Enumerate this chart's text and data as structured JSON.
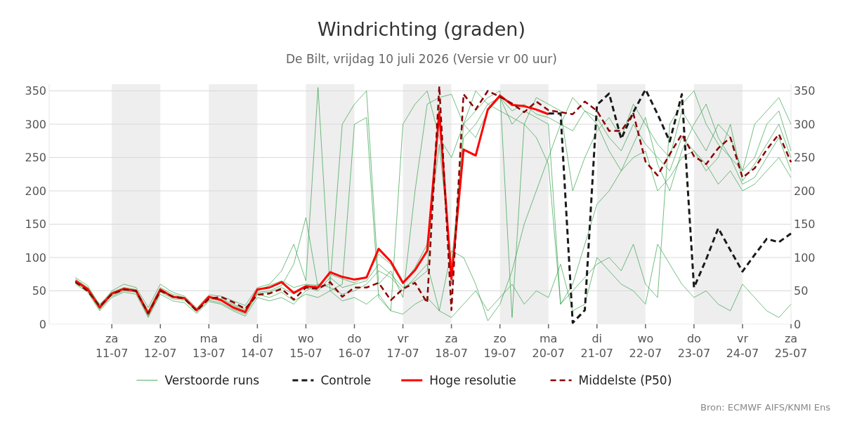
{
  "chart_data": {
    "type": "line",
    "title": "Windrichting (graden)",
    "subtitle": "De Bilt, vrijdag 10 juli 2026 (Versie vr 00 uur)",
    "annotations": [
      "Bron: ECMWF AIFS/KNMI Ens"
    ],
    "x": [
      "2026-07-10T06:00",
      "2026-07-10T12:00",
      "2026-07-10T18:00",
      "2026-07-11T00:00",
      "2026-07-11T06:00",
      "2026-07-11T12:00",
      "2026-07-11T18:00",
      "2026-07-12T00:00",
      "2026-07-12T06:00",
      "2026-07-12T12:00",
      "2026-07-12T18:00",
      "2026-07-13T00:00",
      "2026-07-13T06:00",
      "2026-07-13T12:00",
      "2026-07-13T18:00",
      "2026-07-14T00:00",
      "2026-07-14T06:00",
      "2026-07-14T12:00",
      "2026-07-14T18:00",
      "2026-07-15T00:00",
      "2026-07-15T06:00",
      "2026-07-15T12:00",
      "2026-07-15T18:00",
      "2026-07-16T00:00",
      "2026-07-16T06:00",
      "2026-07-16T12:00",
      "2026-07-16T18:00",
      "2026-07-17T00:00",
      "2026-07-17T06:00",
      "2026-07-17T12:00",
      "2026-07-17T18:00",
      "2026-07-18T00:00",
      "2026-07-18T06:00",
      "2026-07-18T12:00",
      "2026-07-18T18:00",
      "2026-07-19T00:00",
      "2026-07-19T06:00",
      "2026-07-19T12:00",
      "2026-07-19T18:00",
      "2026-07-20T00:00",
      "2026-07-20T06:00",
      "2026-07-20T12:00",
      "2026-07-20T18:00",
      "2026-07-21T00:00",
      "2026-07-21T06:00",
      "2026-07-21T12:00",
      "2026-07-21T18:00",
      "2026-07-22T00:00",
      "2026-07-22T06:00",
      "2026-07-22T12:00",
      "2026-07-22T18:00",
      "2026-07-23T00:00",
      "2026-07-23T06:00",
      "2026-07-23T12:00",
      "2026-07-23T18:00",
      "2026-07-24T00:00",
      "2026-07-24T06:00",
      "2026-07-24T12:00",
      "2026-07-24T18:00",
      "2026-07-25T00:00"
    ],
    "xlim": [
      "2026-07-09T17:00",
      "2026-07-25T00:00"
    ],
    "xticks": [
      {
        "value": "2026-07-11",
        "label": "za\n11-07"
      },
      {
        "value": "2026-07-12",
        "label": "zo\n12-07"
      },
      {
        "value": "2026-07-13",
        "label": "ma\n13-07"
      },
      {
        "value": "2026-07-14",
        "label": "di\n14-07"
      },
      {
        "value": "2026-07-15",
        "label": "wo\n15-07"
      },
      {
        "value": "2026-07-16",
        "label": "do\n16-07"
      },
      {
        "value": "2026-07-17",
        "label": "vr\n17-07"
      },
      {
        "value": "2026-07-18",
        "label": "za\n18-07"
      },
      {
        "value": "2026-07-19",
        "label": "zo\n19-07"
      },
      {
        "value": "2026-07-20",
        "label": "ma\n20-07"
      },
      {
        "value": "2026-07-21",
        "label": "di\n21-07"
      },
      {
        "value": "2026-07-22",
        "label": "wo\n22-07"
      },
      {
        "value": "2026-07-23",
        "label": "do\n23-07"
      },
      {
        "value": "2026-07-24",
        "label": "vr\n24-07"
      },
      {
        "value": "2026-07-25",
        "label": "za\n25-07"
      }
    ],
    "ylim": [
      0,
      360
    ],
    "yticks": [
      0,
      50,
      100,
      150,
      200,
      250,
      300,
      350
    ],
    "y2lim": [
      0,
      360
    ],
    "y2ticks": [
      0,
      50,
      100,
      150,
      200,
      250,
      300,
      350
    ],
    "grid": "y",
    "legend": "bottom",
    "bands": [
      {
        "axis": "x",
        "from": "2026-07-11",
        "to": "2026-07-12",
        "color": "#eeeeee"
      },
      {
        "axis": "x",
        "from": "2026-07-13",
        "to": "2026-07-14",
        "color": "#eeeeee"
      },
      {
        "axis": "x",
        "from": "2026-07-15",
        "to": "2026-07-16",
        "color": "#eeeeee"
      },
      {
        "axis": "x",
        "from": "2026-07-17",
        "to": "2026-07-18",
        "color": "#eeeeee"
      },
      {
        "axis": "x",
        "from": "2026-07-19",
        "to": "2026-07-20",
        "color": "#eeeeee"
      },
      {
        "axis": "x",
        "from": "2026-07-21",
        "to": "2026-07-22",
        "color": "#eeeeee"
      },
      {
        "axis": "x",
        "from": "2026-07-23",
        "to": "2026-07-24",
        "color": "#eeeeee"
      }
    ],
    "series": [
      {
        "name": "Verstoorde runs",
        "color": "#2e9e44",
        "line_style": "solid",
        "values": [
          68,
          55,
          30,
          48,
          55,
          52,
          20,
          55,
          45,
          40,
          22,
          40,
          38,
          30,
          22,
          50,
          58,
          65,
          55,
          60,
          58,
          75,
          68,
          62,
          72,
          105,
          90,
          60,
          85,
          120,
          270,
          90,
          280,
          300,
          330,
          340,
          320,
          330,
          315,
          310,
          300,
          290,
          320,
          310,
          280,
          260,
          300,
          270,
          250,
          230,
          280,
          260,
          230,
          250,
          300,
          215,
          240,
          270,
          300,
          250
        ]
      },
      {
        "color": "#2e9e44",
        "line_style": "solid",
        "values": [
          62,
          50,
          22,
          42,
          50,
          48,
          12,
          48,
          38,
          36,
          18,
          36,
          32,
          22,
          15,
          45,
          40,
          48,
          35,
          45,
          40,
          50,
          35,
          40,
          30,
          45,
          20,
          15,
          30,
          40,
          20,
          10,
          30,
          50,
          20,
          40,
          60,
          30,
          50,
          40,
          90,
          20,
          30,
          100,
          80,
          60,
          50,
          30,
          120,
          90,
          60,
          40,
          50,
          30,
          20,
          60,
          40,
          20,
          10,
          30
        ]
      },
      {
        "color": "#2e9e44",
        "line_style": "solid",
        "values": [
          70,
          58,
          28,
          50,
          60,
          55,
          25,
          60,
          48,
          42,
          24,
          44,
          42,
          35,
          28,
          55,
          60,
          80,
          120,
          65,
          355,
          50,
          60,
          300,
          310,
          40,
          20,
          300,
          330,
          350,
          280,
          250,
          300,
          320,
          340,
          350,
          10,
          300,
          340,
          330,
          320,
          200,
          250,
          290,
          310,
          280,
          330,
          300,
          270,
          250,
          320,
          290,
          260,
          300,
          280,
          230,
          250,
          300,
          320,
          260
        ]
      },
      {
        "color": "#2e9e44",
        "line_style": "solid",
        "values": [
          60,
          48,
          20,
          40,
          48,
          45,
          10,
          45,
          35,
          32,
          16,
          34,
          30,
          20,
          12,
          40,
          35,
          40,
          30,
          50,
          60,
          55,
          45,
          50,
          60,
          80,
          70,
          50,
          70,
          90,
          20,
          110,
          100,
          60,
          5,
          30,
          80,
          150,
          200,
          250,
          300,
          340,
          320,
          300,
          260,
          230,
          270,
          310,
          240,
          200,
          260,
          300,
          330,
          280,
          250,
          210,
          220,
          250,
          280,
          230
        ]
      },
      {
        "color": "#2e9e44",
        "line_style": "solid",
        "values": [
          66,
          52,
          26,
          46,
          54,
          50,
          18,
          50,
          42,
          40,
          20,
          40,
          36,
          28,
          20,
          48,
          50,
          58,
          90,
          160,
          55,
          60,
          300,
          330,
          350,
          60,
          80,
          40,
          200,
          330,
          340,
          345,
          300,
          350,
          330,
          320,
          310,
          300,
          280,
          240,
          30,
          50,
          70,
          90,
          100,
          80,
          120,
          60,
          40,
          300,
          330,
          350,
          300,
          270,
          250,
          230,
          300,
          320,
          340,
          300
        ]
      },
      {
        "color": "#2e9e44",
        "line_style": "solid",
        "values": [
          64,
          50,
          24,
          44,
          52,
          50,
          14,
          50,
          40,
          38,
          20,
          38,
          36,
          26,
          18,
          46,
          48,
          55,
          45,
          55,
          50,
          70,
          55,
          60,
          65,
          90,
          75,
          55,
          65,
          80,
          330,
          60,
          300,
          280,
          320,
          340,
          300,
          320,
          310,
          300,
          30,
          60,
          120,
          180,
          200,
          230,
          250,
          260,
          200,
          220,
          250,
          260,
          240,
          210,
          230,
          200,
          210,
          230,
          250,
          220
        ]
      },
      {
        "name": "Controle",
        "color": "#1a1a1a",
        "line_style": "dashed",
        "values": [
          null,
          null,
          null,
          null,
          null,
          null,
          null,
          null,
          null,
          null,
          null,
          null,
          null,
          null,
          null,
          null,
          null,
          null,
          null,
          null,
          null,
          null,
          null,
          null,
          null,
          null,
          null,
          null,
          null,
          null,
          null,
          null,
          null,
          null,
          null,
          null,
          null,
          null,
          null,
          316,
          316,
          2,
          21,
          329,
          346,
          278,
          318,
          352,
          315,
          274,
          345,
          55,
          97,
          144,
          111,
          79,
          104,
          128,
          123,
          136
        ]
      },
      {
        "name": "Hoge resolutie",
        "color": "#ff0000",
        "line_style": "solid",
        "values": [
          65,
          53,
          25,
          46,
          53,
          50,
          16,
          52,
          41,
          39,
          21,
          41,
          36,
          25,
          18,
          52,
          55,
          63,
          47,
          57,
          55,
          78,
          71,
          67,
          70,
          113,
          94,
          62,
          81,
          110,
          318,
          68,
          262,
          253,
          322,
          343,
          329,
          327,
          322,
          315,
          null,
          null,
          null,
          null,
          null,
          null,
          null,
          null,
          null,
          null,
          null,
          null,
          null,
          null,
          null,
          null,
          null,
          null,
          null,
          null
        ]
      },
      {
        "name": "Middelste (P50)",
        "color": "#8b0000",
        "line_style": "dashed",
        "values": [
          63,
          50,
          27,
          45,
          52,
          50,
          16,
          50,
          42,
          38,
          20,
          38,
          41,
          33,
          23,
          44,
          46,
          53,
          37,
          55,
          53,
          63,
          41,
          55,
          55,
          62,
          36,
          53,
          62,
          32,
          357,
          21,
          345,
          322,
          350,
          341,
          331,
          318,
          334,
          321,
          318,
          315,
          334,
          320,
          290,
          290,
          316,
          244,
          223,
          255,
          285,
          252,
          240,
          264,
          280,
          220,
          234,
          262,
          285,
          243
        ]
      }
    ]
  }
}
